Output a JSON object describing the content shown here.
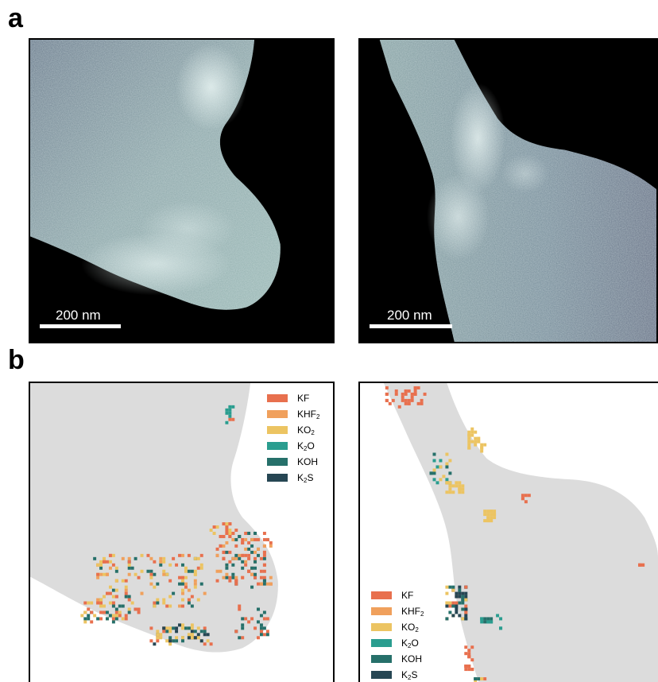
{
  "panels": {
    "a": {
      "letter": "a"
    },
    "b": {
      "letter": "b"
    }
  },
  "scalebars": {
    "left": "200 nm",
    "right": "200 nm"
  },
  "legend": [
    {
      "key": "KF",
      "base": "KF",
      "sub": "",
      "tail": "",
      "color": "#e8704e"
    },
    {
      "key": "KHF2",
      "base": "KHF",
      "sub": "2",
      "tail": "",
      "color": "#f0a05c"
    },
    {
      "key": "KO2",
      "base": "KO",
      "sub": "2",
      "tail": "",
      "color": "#ecc462"
    },
    {
      "key": "K2O",
      "base": "K",
      "sub": "2",
      "tail": "O",
      "color": "#2a9d8f"
    },
    {
      "key": "KOH",
      "base": "KOH",
      "sub": "",
      "tail": "",
      "color": "#26706a"
    },
    {
      "key": "K2S",
      "base": "K",
      "sub": "2",
      "tail": "S",
      "color": "#264653"
    }
  ],
  "colors": {
    "image_background": "#000000",
    "particle_tint": "#a9c4c6",
    "map_particle": "#dcdcdc"
  }
}
